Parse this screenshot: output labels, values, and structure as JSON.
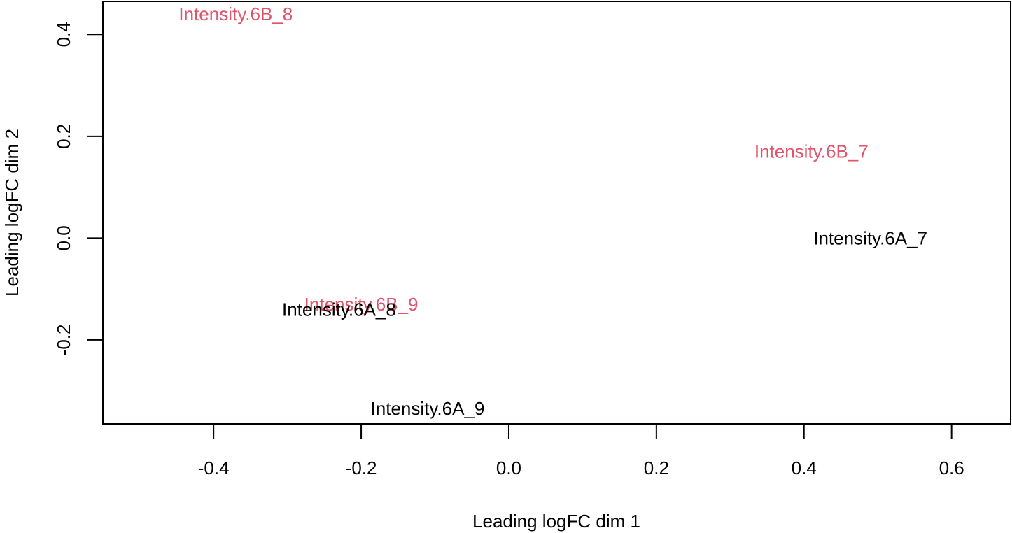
{
  "chart_data": {
    "type": "scatter",
    "title": "",
    "xlabel": "Leading logFC dim 1",
    "ylabel": "Leading logFC dim 2",
    "xlim": [
      -0.55,
      0.68
    ],
    "ylim": [
      -0.365,
      0.465
    ],
    "x_ticks": [
      -0.4,
      -0.2,
      0.0,
      0.2,
      0.4,
      0.6
    ],
    "x_tick_labels": [
      "-0.4",
      "-0.2",
      "0.0",
      "0.2",
      "0.4",
      "0.6"
    ],
    "y_ticks": [
      -0.2,
      0.0,
      0.2,
      0.4
    ],
    "y_tick_labels": [
      "-0.2",
      "0.0",
      "0.2",
      "0.4"
    ],
    "grid": false,
    "colors": {
      "6A": "#000000",
      "6B": "#DF536B"
    },
    "points": [
      {
        "label": "Intensity.6B_8",
        "x": -0.37,
        "y": 0.44,
        "group": "6B"
      },
      {
        "label": "Intensity.6B_7",
        "x": 0.41,
        "y": 0.17,
        "group": "6B"
      },
      {
        "label": "Intensity.6A_7",
        "x": 0.49,
        "y": 0.0,
        "group": "6A"
      },
      {
        "label": "Intensity.6B_9",
        "x": -0.2,
        "y": -0.13,
        "group": "6B"
      },
      {
        "label": "Intensity.6A_8",
        "x": -0.23,
        "y": -0.14,
        "group": "6A"
      },
      {
        "label": "Intensity.6A_9",
        "x": -0.11,
        "y": -0.335,
        "group": "6A"
      }
    ]
  }
}
